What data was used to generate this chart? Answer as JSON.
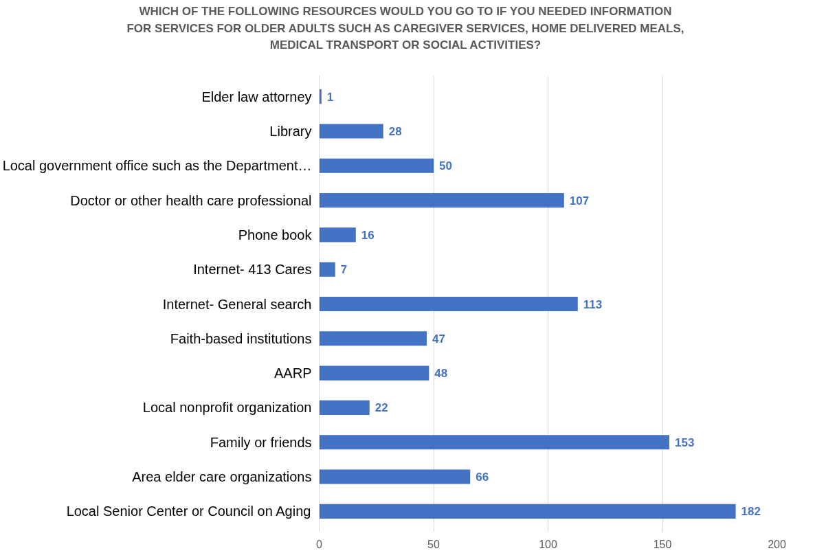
{
  "chart_data": {
    "type": "bar",
    "orientation": "horizontal",
    "title": "WHICH OF THE FOLLOWING RESOURCES WOULD YOU GO TO IF YOU NEEDED INFORMATION\nFOR SERVICES FOR OLDER ADULTS SUCH AS CAREGIVER SERVICES, HOME DELIVERED MEALS,\nMEDICAL TRANSPORT OR SOCIAL ACTIVITIES?",
    "categories": [
      "Elder law attorney",
      "Library",
      "Local government office such as the Department…",
      "Doctor or other health care professional",
      "Phone book",
      "Internet- 413 Cares",
      "Internet- General search",
      "Faith-based institutions",
      "AARP",
      "Local nonprofit organization",
      "Family or friends",
      "Area elder care organizations",
      "Local Senior Center or Council on Aging"
    ],
    "values": [
      1,
      28,
      50,
      107,
      16,
      7,
      113,
      47,
      48,
      22,
      153,
      66,
      182
    ],
    "color": "#4472c4",
    "data_labels": true,
    "xlim": [
      0,
      200
    ],
    "xticks": [
      0,
      50,
      100,
      150,
      200
    ],
    "grid": "x"
  }
}
